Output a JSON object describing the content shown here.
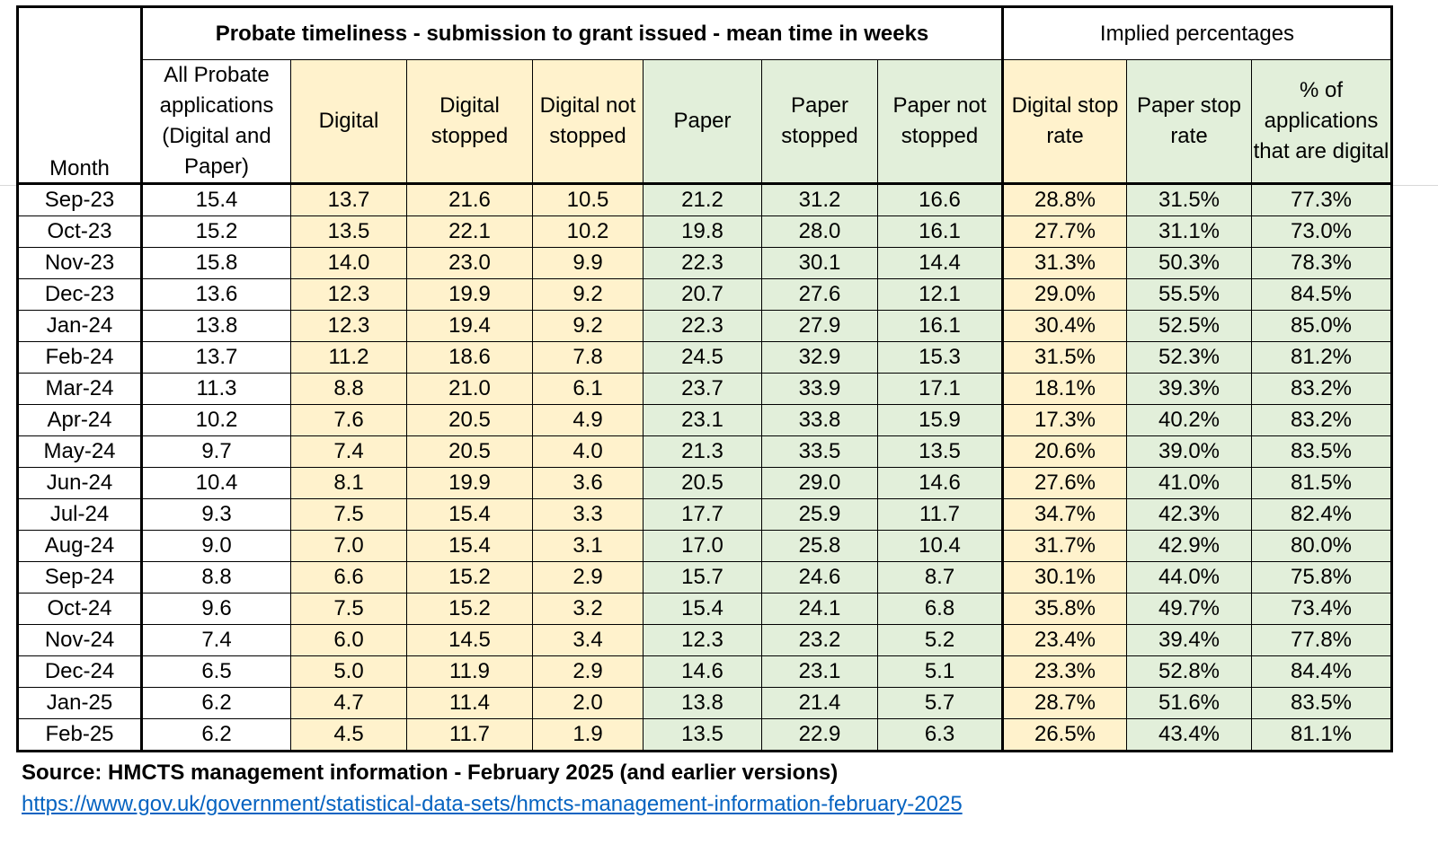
{
  "header": {
    "month": "Month",
    "group_title": "Probate timeliness - submission to grant issued - mean time in weeks",
    "implied_title": "Implied percentages",
    "columns": [
      "All Probate applications (Digital and Paper)",
      "Digital",
      "Digital stopped",
      "Digital not stopped",
      "Paper",
      "Paper stopped",
      "Paper not stopped",
      "Digital stop rate",
      "Paper stop rate",
      "% of applications that are digital"
    ]
  },
  "rows": [
    [
      "Sep-23",
      "15.4",
      "13.7",
      "21.6",
      "10.5",
      "21.2",
      "31.2",
      "16.6",
      "28.8%",
      "31.5%",
      "77.3%"
    ],
    [
      "Oct-23",
      "15.2",
      "13.5",
      "22.1",
      "10.2",
      "19.8",
      "28.0",
      "16.1",
      "27.7%",
      "31.1%",
      "73.0%"
    ],
    [
      "Nov-23",
      "15.8",
      "14.0",
      "23.0",
      "9.9",
      "22.3",
      "30.1",
      "14.4",
      "31.3%",
      "50.3%",
      "78.3%"
    ],
    [
      "Dec-23",
      "13.6",
      "12.3",
      "19.9",
      "9.2",
      "20.7",
      "27.6",
      "12.1",
      "29.0%",
      "55.5%",
      "84.5%"
    ],
    [
      "Jan-24",
      "13.8",
      "12.3",
      "19.4",
      "9.2",
      "22.3",
      "27.9",
      "16.1",
      "30.4%",
      "52.5%",
      "85.0%"
    ],
    [
      "Feb-24",
      "13.7",
      "11.2",
      "18.6",
      "7.8",
      "24.5",
      "32.9",
      "15.3",
      "31.5%",
      "52.3%",
      "81.2%"
    ],
    [
      "Mar-24",
      "11.3",
      "8.8",
      "21.0",
      "6.1",
      "23.7",
      "33.9",
      "17.1",
      "18.1%",
      "39.3%",
      "83.2%"
    ],
    [
      "Apr-24",
      "10.2",
      "7.6",
      "20.5",
      "4.9",
      "23.1",
      "33.8",
      "15.9",
      "17.3%",
      "40.2%",
      "83.2%"
    ],
    [
      "May-24",
      "9.7",
      "7.4",
      "20.5",
      "4.0",
      "21.3",
      "33.5",
      "13.5",
      "20.6%",
      "39.0%",
      "83.5%"
    ],
    [
      "Jun-24",
      "10.4",
      "8.1",
      "19.9",
      "3.6",
      "20.5",
      "29.0",
      "14.6",
      "27.6%",
      "41.0%",
      "81.5%"
    ],
    [
      "Jul-24",
      "9.3",
      "7.5",
      "15.4",
      "3.3",
      "17.7",
      "25.9",
      "11.7",
      "34.7%",
      "42.3%",
      "82.4%"
    ],
    [
      "Aug-24",
      "9.0",
      "7.0",
      "15.4",
      "3.1",
      "17.0",
      "25.8",
      "10.4",
      "31.7%",
      "42.9%",
      "80.0%"
    ],
    [
      "Sep-24",
      "8.8",
      "6.6",
      "15.2",
      "2.9",
      "15.7",
      "24.6",
      "8.7",
      "30.1%",
      "44.0%",
      "75.8%"
    ],
    [
      "Oct-24",
      "9.6",
      "7.5",
      "15.2",
      "3.2",
      "15.4",
      "24.1",
      "6.8",
      "35.8%",
      "49.7%",
      "73.4%"
    ],
    [
      "Nov-24",
      "7.4",
      "6.0",
      "14.5",
      "3.4",
      "12.3",
      "23.2",
      "5.2",
      "23.4%",
      "39.4%",
      "77.8%"
    ],
    [
      "Dec-24",
      "6.5",
      "5.0",
      "11.9",
      "2.9",
      "14.6",
      "23.1",
      "5.1",
      "23.3%",
      "52.8%",
      "84.4%"
    ],
    [
      "Jan-25",
      "6.2",
      "4.7",
      "11.4",
      "2.0",
      "13.8",
      "21.4",
      "5.7",
      "28.7%",
      "51.6%",
      "83.5%"
    ],
    [
      "Feb-25",
      "6.2",
      "4.5",
      "11.7",
      "1.9",
      "13.5",
      "22.9",
      "6.3",
      "26.5%",
      "43.4%",
      "81.1%"
    ]
  ],
  "column_fill": [
    "w",
    "w",
    "y",
    "y",
    "y",
    "g",
    "g",
    "g",
    "y",
    "g",
    "g"
  ],
  "colors": {
    "yellow": "#fff2cc",
    "green": "#e2efda",
    "link": "#0563c1"
  },
  "footer": {
    "source": "Source: HMCTS management information - February 2025 (and earlier versions)",
    "url": "https://www.gov.uk/government/statistical-data-sets/hmcts-management-information-february-2025"
  }
}
